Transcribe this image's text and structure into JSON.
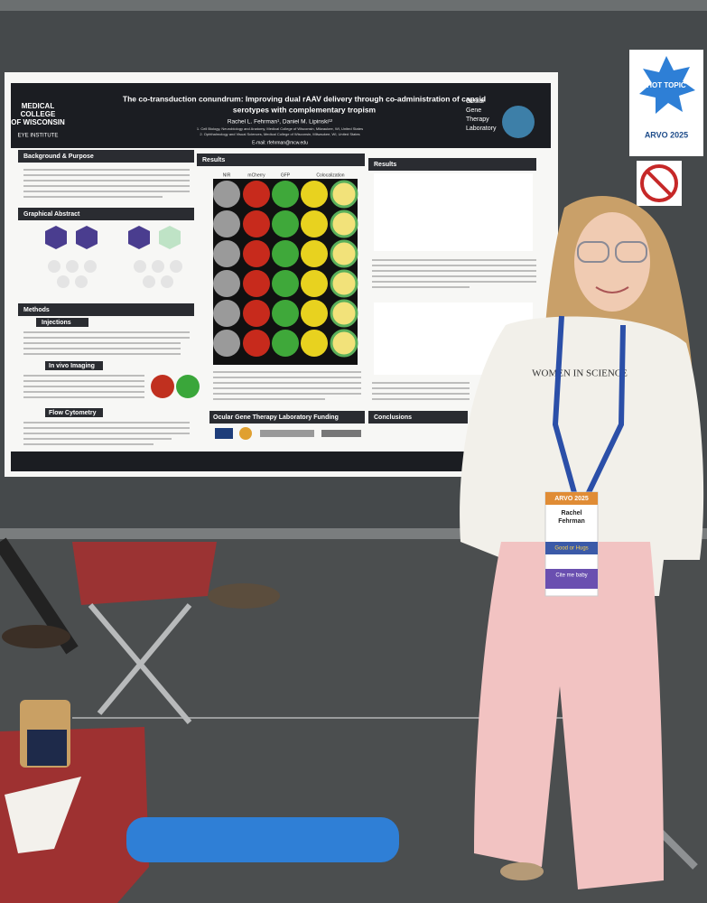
{
  "poster": {
    "title": [
      "The co-transduction conundrum: Improving dual rAAV delivery through co-administration of capsid",
      "serotypes with complementary tropism"
    ],
    "authors": "Rachel L. Fehrman¹, Daniel M. Lipinski¹²",
    "affiliations": [
      "1. Cell Biology, Neurobiology and Anatomy, Medical College of Wisconsin, Milwaukee, WI, United States",
      "2. Ophthalmology and Visual Sciences, Medical College of Wisconsin, Milwaukee, WI, United States"
    ],
    "email": "E-mail: rfehrman@mcw.edu",
    "logo_left": [
      "MEDICAL",
      "COLLEGE",
      "OF WISCONSIN",
      "EYE INSTITUTE"
    ],
    "logo_right": [
      "Ocular",
      "Gene",
      "Therapy",
      "Laboratory"
    ],
    "sections": {
      "background": "Background & Purpose",
      "graphical_abstract": "Graphical Abstract",
      "methods": "Methods",
      "injections": "Injections",
      "imaging": "In vivo Imaging",
      "flow": "Flow Cytometry",
      "results_middle": "Results",
      "results_right": "Results",
      "funding": "Ocular Gene Therapy Laboratory Funding",
      "conclusions": "Conclusions"
    },
    "image_columns": [
      "NIR",
      "mCherry",
      "GFP",
      "Colocalization"
    ]
  },
  "sign": {
    "title": "HOT TOPIC",
    "event": "ARVO 2025"
  },
  "shirt": "WOMEN IN SCIENCE",
  "badge": {
    "event": "ARVO 2025",
    "name": [
      "Rachel",
      "Fehrman"
    ],
    "ribbon_1": "Good or Hugs",
    "ribbon_2": "Cite me baby"
  }
}
